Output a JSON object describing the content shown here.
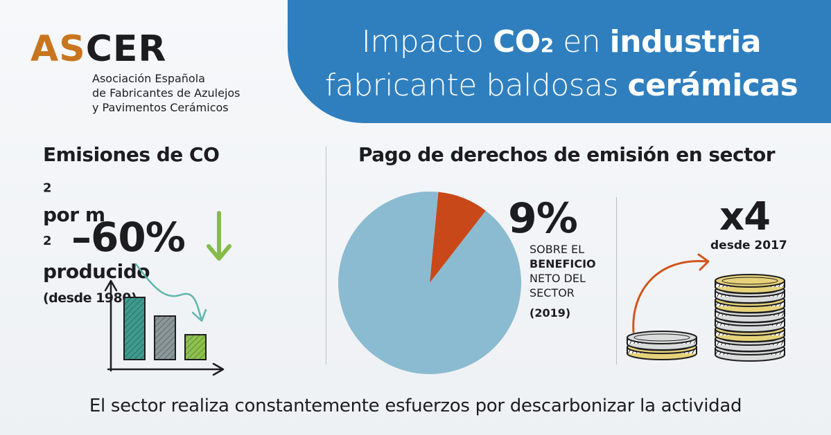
{
  "logo": {
    "as": "AS",
    "cer": "CER",
    "lines": [
      "Asociación Española",
      "de Fabricantes de Azulejos",
      "y Pavimentos Cerámicos"
    ]
  },
  "header": {
    "line1": {
      "a": "Impacto ",
      "b": "CO",
      "c": "2",
      "d": " en ",
      "e": "industria"
    },
    "line2": {
      "a": "fabricante baldosas ",
      "b": "cerámicas"
    }
  },
  "left": {
    "title_line1": {
      "a": "Emisiones de CO",
      "b": "2",
      "c": " por m",
      "d": "2"
    },
    "title_line2": {
      "a": "producido ",
      "b": "(desde 1980)"
    },
    "value": "–60%"
  },
  "right": {
    "title": "Pago de derechos de emisión en sector",
    "pie_value": "9%",
    "note_lines": [
      "SOBRE EL",
      "BENEFICIO",
      "NETO DEL",
      "SECTOR"
    ],
    "note_year": "(2019)",
    "multiplier": "x4",
    "multiplier_note": "desde 2017"
  },
  "footer": "El sector realiza constantemente esfuerzos por descarbonizar la actividad",
  "colors": {
    "band": "#2f7fbf",
    "logo_accent": "#c8751f",
    "pie_main": "#8bbbd0",
    "pie_slice": "#c9481a",
    "bar1": "#3f9a8e",
    "bar2": "#8c9799",
    "bar3": "#8dc04e",
    "arrow_green": "#86bb4a",
    "arrow_teal": "#5fb5ad",
    "coin_gold": "#e6d27a",
    "coin_silver": "#dadcdc",
    "curve_arrow": "#d2541b"
  },
  "chart_data": [
    {
      "type": "pie",
      "title": "Pago de derechos de emisión en sector",
      "slices": [
        {
          "label": "9%",
          "value": 9
        },
        {
          "label": "",
          "value": 91
        }
      ]
    },
    {
      "type": "bar",
      "title": "",
      "categories": [
        "",
        "",
        ""
      ],
      "values": [
        100,
        70,
        40
      ],
      "xlabel": "",
      "ylabel": ""
    }
  ]
}
